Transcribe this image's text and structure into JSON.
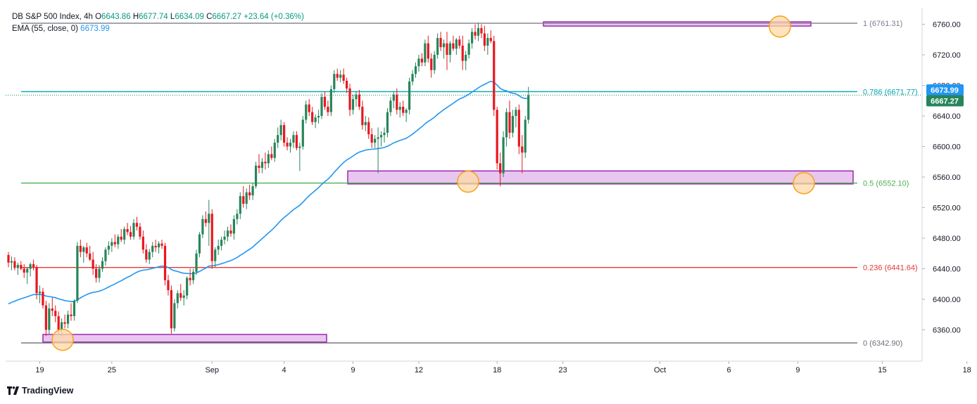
{
  "legend": {
    "symbol": "DB S&P 500 Index, 4h",
    "o_label": "O",
    "o": "6643.86",
    "h_label": "H",
    "h": "6677.74",
    "l_label": "L",
    "l": "6634.09",
    "c_label": "C",
    "c": "6667.27",
    "change": "+23.64 (+0.36%)",
    "ema_label": "EMA (55, close, 0)",
    "ema_value": "6673.99"
  },
  "watermark": "TradingView",
  "colors": {
    "up": "#26855a",
    "down": "#e8161f",
    "ema": "#2196f3",
    "fib_1": "#7a7f8a",
    "fib_0786": "#00a6b4",
    "fib_05": "#4caf50",
    "fib_0236": "#e53935",
    "fib_0": "#6b6f78",
    "zone_fill": "#e8c6ef",
    "zone_stroke": "#9c27b0",
    "marker_fill": "#ffd9a8",
    "marker_stroke": "#f5a623"
  },
  "chart_data": {
    "type": "candlestick",
    "title": "DB S&P 500 Index, 4h",
    "ylim": [
      6320,
      6790
    ],
    "y_ticks": [
      6360,
      6400,
      6440,
      6480,
      6520,
      6560,
      6600,
      6640,
      6680,
      6720,
      6760
    ],
    "y_tick_labels": [
      "6360.00",
      "6400.00",
      "6440.00",
      "6480.00",
      "6520.00",
      "6560.00",
      "6600.00",
      "6640.00",
      "6680.00",
      "6720.00",
      "6760.00"
    ],
    "x_tick_labels": [
      "19",
      "25",
      "Sep",
      "4",
      "9",
      "12",
      "18",
      "23",
      "Oct",
      "6",
      "9",
      "15",
      "18"
    ],
    "x_tick_index": [
      10,
      33,
      65,
      88,
      110,
      131,
      156,
      177,
      208,
      230,
      252,
      279,
      306
    ],
    "fib_levels": [
      {
        "ratio": "1",
        "value": 6761.31,
        "label": "1 (6761.31)"
      },
      {
        "ratio": "0.786",
        "value": 6671.77,
        "label": "0.786 (6671.77)"
      },
      {
        "ratio": "0.5",
        "value": 6552.1,
        "label": "0.5 (6552.10)"
      },
      {
        "ratio": "0.236",
        "value": 6441.64,
        "label": "0.236 (6441.64)"
      },
      {
        "ratio": "0",
        "value": 6342.9,
        "label": "0 (6342.90)"
      }
    ],
    "ema_last": 6673.99,
    "close_last": 6667.27,
    "ema_badge": "6673.99",
    "close_badge": "6667.27",
    "candles": [
      [
        6458,
        6462,
        6442,
        6448
      ],
      [
        6448,
        6456,
        6438,
        6450
      ],
      [
        6450,
        6455,
        6438,
        6441
      ],
      [
        6441,
        6448,
        6432,
        6445
      ],
      [
        6445,
        6450,
        6438,
        6440
      ],
      [
        6440,
        6446,
        6428,
        6435
      ],
      [
        6435,
        6442,
        6420,
        6440
      ],
      [
        6440,
        6448,
        6430,
        6446
      ],
      [
        6446,
        6452,
        6438,
        6442
      ],
      [
        6442,
        6445,
        6400,
        6408
      ],
      [
        6408,
        6418,
        6395,
        6410
      ],
      [
        6410,
        6415,
        6388,
        6392
      ],
      [
        6392,
        6398,
        6352,
        6360
      ],
      [
        6360,
        6395,
        6355,
        6388
      ],
      [
        6388,
        6402,
        6378,
        6385
      ],
      [
        6385,
        6392,
        6370,
        6378
      ],
      [
        6378,
        6384,
        6355,
        6360
      ],
      [
        6360,
        6375,
        6352,
        6370
      ],
      [
        6370,
        6380,
        6362,
        6368
      ],
      [
        6368,
        6385,
        6362,
        6380
      ],
      [
        6380,
        6395,
        6372,
        6378
      ],
      [
        6378,
        6400,
        6372,
        6398
      ],
      [
        6398,
        6475,
        6395,
        6470
      ],
      [
        6470,
        6478,
        6455,
        6462
      ],
      [
        6462,
        6470,
        6448,
        6468
      ],
      [
        6468,
        6474,
        6455,
        6460
      ],
      [
        6460,
        6470,
        6450,
        6452
      ],
      [
        6452,
        6462,
        6432,
        6440
      ],
      [
        6440,
        6446,
        6422,
        6428
      ],
      [
        6428,
        6445,
        6422,
        6440
      ],
      [
        6440,
        6455,
        6436,
        6450
      ],
      [
        6450,
        6468,
        6444,
        6465
      ],
      [
        6465,
        6476,
        6458,
        6470
      ],
      [
        6470,
        6480,
        6462,
        6475
      ],
      [
        6475,
        6485,
        6468,
        6472
      ],
      [
        6472,
        6485,
        6466,
        6482
      ],
      [
        6482,
        6492,
        6475,
        6478
      ],
      [
        6478,
        6495,
        6472,
        6492
      ],
      [
        6492,
        6500,
        6484,
        6488
      ],
      [
        6488,
        6496,
        6478,
        6482
      ],
      [
        6482,
        6505,
        6478,
        6500
      ],
      [
        6500,
        6508,
        6490,
        6495
      ],
      [
        6495,
        6500,
        6478,
        6482
      ],
      [
        6482,
        6490,
        6460,
        6465
      ],
      [
        6465,
        6472,
        6448,
        6452
      ],
      [
        6452,
        6466,
        6446,
        6462
      ],
      [
        6462,
        6475,
        6455,
        6470
      ],
      [
        6470,
        6478,
        6462,
        6468
      ],
      [
        6468,
        6476,
        6460,
        6473
      ],
      [
        6473,
        6478,
        6466,
        6470
      ],
      [
        6470,
        6474,
        6418,
        6425
      ],
      [
        6425,
        6432,
        6405,
        6412
      ],
      [
        6412,
        6418,
        6355,
        6362
      ],
      [
        6362,
        6400,
        6358,
        6395
      ],
      [
        6395,
        6412,
        6388,
        6408
      ],
      [
        6408,
        6420,
        6398,
        6402
      ],
      [
        6402,
        6412,
        6392,
        6405
      ],
      [
        6405,
        6430,
        6400,
        6428
      ],
      [
        6428,
        6440,
        6418,
        6425
      ],
      [
        6425,
        6440,
        6420,
        6436
      ],
      [
        6436,
        6465,
        6432,
        6460
      ],
      [
        6460,
        6488,
        6455,
        6485
      ],
      [
        6485,
        6510,
        6480,
        6505
      ],
      [
        6505,
        6515,
        6495,
        6500
      ],
      [
        6500,
        6530,
        6470,
        6512
      ],
      [
        6512,
        6518,
        6440,
        6450
      ],
      [
        6450,
        6468,
        6442,
        6465
      ],
      [
        6465,
        6478,
        6458,
        6470
      ],
      [
        6470,
        6482,
        6464,
        6478
      ],
      [
        6478,
        6490,
        6472,
        6482
      ],
      [
        6482,
        6495,
        6476,
        6490
      ],
      [
        6490,
        6498,
        6482,
        6486
      ],
      [
        6486,
        6510,
        6478,
        6505
      ],
      [
        6505,
        6518,
        6498,
        6512
      ],
      [
        6512,
        6540,
        6505,
        6535
      ],
      [
        6535,
        6548,
        6520,
        6525
      ],
      [
        6525,
        6545,
        6518,
        6540
      ],
      [
        6540,
        6550,
        6530,
        6536
      ],
      [
        6536,
        6552,
        6530,
        6548
      ],
      [
        6548,
        6580,
        6545,
        6575
      ],
      [
        6575,
        6590,
        6565,
        6572
      ],
      [
        6572,
        6585,
        6565,
        6580
      ],
      [
        6580,
        6592,
        6570,
        6578
      ],
      [
        6578,
        6595,
        6572,
        6590
      ],
      [
        6590,
        6600,
        6582,
        6585
      ],
      [
        6585,
        6610,
        6580,
        6605
      ],
      [
        6605,
        6625,
        6598,
        6615
      ],
      [
        6615,
        6635,
        6608,
        6628
      ],
      [
        6628,
        6632,
        6600,
        6605
      ],
      [
        6605,
        6612,
        6595,
        6600
      ],
      [
        6600,
        6610,
        6592,
        6605
      ],
      [
        6605,
        6620,
        6598,
        6615
      ],
      [
        6615,
        6620,
        6595,
        6598
      ],
      [
        6598,
        6605,
        6568,
        6600
      ],
      [
        6600,
        6640,
        6596,
        6635
      ],
      [
        6635,
        6660,
        6630,
        6655
      ],
      [
        6655,
        6662,
        6640,
        6645
      ],
      [
        6645,
        6652,
        6628,
        6632
      ],
      [
        6632,
        6642,
        6624,
        6638
      ],
      [
        6638,
        6648,
        6630,
        6640
      ],
      [
        6640,
        6670,
        6636,
        6665
      ],
      [
        6665,
        6672,
        6648,
        6652
      ],
      [
        6652,
        6660,
        6640,
        6645
      ],
      [
        6645,
        6680,
        6640,
        6675
      ],
      [
        6675,
        6700,
        6670,
        6695
      ],
      [
        6695,
        6702,
        6686,
        6690
      ],
      [
        6690,
        6700,
        6684,
        6694
      ],
      [
        6694,
        6702,
        6682,
        6686
      ],
      [
        6686,
        6690,
        6670,
        6676
      ],
      [
        6676,
        6682,
        6640,
        6648
      ],
      [
        6648,
        6668,
        6642,
        6662
      ],
      [
        6662,
        6672,
        6652,
        6668
      ],
      [
        6668,
        6674,
        6648,
        6652
      ],
      [
        6652,
        6660,
        6622,
        6628
      ],
      [
        6628,
        6640,
        6620,
        6632
      ],
      [
        6632,
        6638,
        6610,
        6616
      ],
      [
        6616,
        6624,
        6598,
        6605
      ],
      [
        6605,
        6615,
        6598,
        6610
      ],
      [
        6610,
        6625,
        6565,
        6612
      ],
      [
        6612,
        6620,
        6600,
        6615
      ],
      [
        6615,
        6625,
        6605,
        6618
      ],
      [
        6618,
        6650,
        6612,
        6645
      ],
      [
        6645,
        6665,
        6640,
        6660
      ],
      [
        6660,
        6672,
        6650,
        6668
      ],
      [
        6668,
        6676,
        6642,
        6648
      ],
      [
        6648,
        6658,
        6638,
        6652
      ],
      [
        6652,
        6660,
        6640,
        6644
      ],
      [
        6644,
        6650,
        6632,
        6648
      ],
      [
        6648,
        6690,
        6642,
        6685
      ],
      [
        6685,
        6700,
        6680,
        6695
      ],
      [
        6695,
        6710,
        6690,
        6705
      ],
      [
        6705,
        6720,
        6698,
        6715
      ],
      [
        6715,
        6722,
        6705,
        6710
      ],
      [
        6710,
        6740,
        6705,
        6735
      ],
      [
        6735,
        6745,
        6710,
        6715
      ],
      [
        6715,
        6722,
        6690,
        6700
      ],
      [
        6700,
        6725,
        6695,
        6720
      ],
      [
        6720,
        6748,
        6715,
        6742
      ],
      [
        6742,
        6750,
        6725,
        6730
      ],
      [
        6730,
        6740,
        6715,
        6735
      ],
      [
        6735,
        6750,
        6700,
        6720
      ],
      [
        6720,
        6738,
        6710,
        6735
      ],
      [
        6735,
        6745,
        6725,
        6728
      ],
      [
        6728,
        6742,
        6720,
        6740
      ],
      [
        6740,
        6745,
        6728,
        6732
      ],
      [
        6732,
        6745,
        6700,
        6712
      ],
      [
        6712,
        6725,
        6700,
        6720
      ],
      [
        6720,
        6740,
        6715,
        6735
      ],
      [
        6735,
        6755,
        6728,
        6750
      ],
      [
        6750,
        6760,
        6740,
        6745
      ],
      [
        6745,
        6762,
        6738,
        6755
      ],
      [
        6755,
        6760,
        6742,
        6748
      ],
      [
        6748,
        6758,
        6725,
        6732
      ],
      [
        6732,
        6748,
        6720,
        6742
      ],
      [
        6742,
        6752,
        6735,
        6738
      ],
      [
        6738,
        6745,
        6640,
        6648
      ],
      [
        6648,
        6652,
        6570,
        6578
      ],
      [
        6578,
        6592,
        6548,
        6565
      ],
      [
        6565,
        6620,
        6560,
        6612
      ],
      [
        6612,
        6650,
        6600,
        6645
      ],
      [
        6645,
        6660,
        6610,
        6618
      ],
      [
        6618,
        6648,
        6612,
        6640
      ],
      [
        6640,
        6652,
        6625,
        6648
      ],
      [
        6648,
        6655,
        6590,
        6600
      ],
      [
        6600,
        6615,
        6565,
        6592
      ],
      [
        6592,
        6640,
        6585,
        6635
      ],
      [
        6635,
        6678,
        6630,
        6667
      ]
    ]
  }
}
